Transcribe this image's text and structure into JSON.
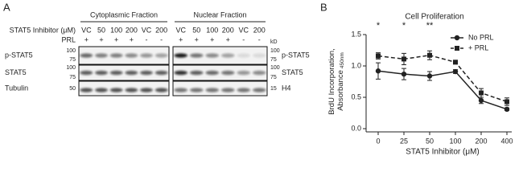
{
  "panel_labels": [
    "A",
    "B"
  ],
  "blot": {
    "fractions": [
      {
        "title": "Cytoplasmic Fraction",
        "lanes": [
          "VC",
          "50",
          "100",
          "200",
          "VC",
          "200"
        ],
        "prl": [
          "+",
          "+",
          "+",
          "+",
          "-",
          "-"
        ]
      },
      {
        "title": "Nuclear Fraction",
        "lanes": [
          "VC",
          "50",
          "100",
          "200",
          "VC",
          "200"
        ],
        "prl": [
          "+",
          "+",
          "+",
          "+",
          "-",
          "-"
        ]
      }
    ],
    "inhibitor_label": "STAT5 Inhibitor (μM)",
    "prl_label": "PRL",
    "kd_label": "kD",
    "left_rows": [
      "p-STAT5",
      "STAT5",
      "Tubulin"
    ],
    "right_rows": [
      "p-STAT5",
      "STAT5",
      "H4"
    ],
    "left_mw": [
      [
        "100",
        "75"
      ],
      [
        "100",
        "75"
      ],
      [
        "50"
      ]
    ],
    "right_mw": [
      [
        "100",
        "75"
      ],
      [
        "100",
        "75"
      ],
      [
        "15"
      ]
    ]
  },
  "chart_data": {
    "type": "line",
    "title": "Cell Proliferation",
    "xlabel": "STAT5 Inhibitor (μM)",
    "ylabel": [
      "BrdU Incorporation,",
      "Absorbance"
    ],
    "ylabel_subscript": "450nm",
    "categories": [
      "0",
      "25",
      "50",
      "100",
      "200",
      "400"
    ],
    "ylim": [
      0,
      1.5
    ],
    "yticks": [
      {
        "value": 0,
        "label": "0.0"
      },
      0.5,
      {
        "value": 1,
        "label": "1.0"
      },
      1.5
    ],
    "legend": "upper right",
    "series": [
      {
        "name": "No PRL",
        "color": "#222222",
        "marker": "circle",
        "dashed": false,
        "values": [
          0.92,
          0.87,
          0.84,
          0.91,
          0.45,
          0.31
        ],
        "errors": [
          0.13,
          0.09,
          0.07,
          0.03,
          0.05,
          0.02
        ]
      },
      {
        "name": "+ PRL",
        "color": "#222222",
        "marker": "square",
        "dashed": true,
        "values": [
          1.16,
          1.11,
          1.17,
          1.06,
          0.57,
          0.43
        ],
        "errors": [
          0.05,
          0.09,
          0.07,
          0.02,
          0.07,
          0.06
        ]
      }
    ],
    "annotations": [
      {
        "text": "*",
        "x": "0"
      },
      {
        "text": "*",
        "x": "25"
      },
      {
        "text": "**",
        "x": "50"
      }
    ]
  }
}
